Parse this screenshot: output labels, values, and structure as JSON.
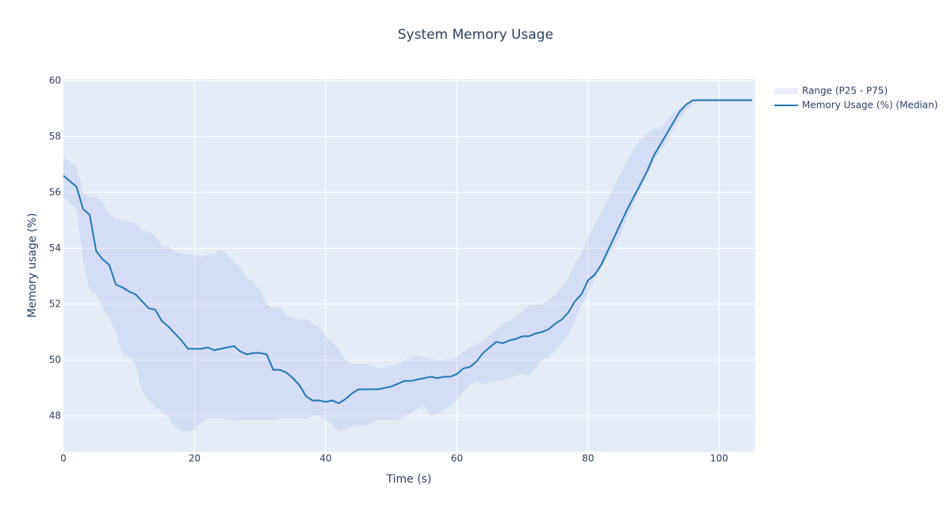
{
  "chart_data": {
    "type": "line",
    "title": "System Memory Usage",
    "x_label": "Time (s)",
    "y_label": "Memory usage (%)",
    "xlim": [
      0,
      105.5
    ],
    "ylim": [
      46.72,
      60.05
    ],
    "xticks": [
      0,
      20,
      40,
      60,
      80,
      100
    ],
    "yticks": [
      48,
      50,
      52,
      54,
      56,
      58,
      60
    ],
    "grid": true,
    "x": [
      0,
      1,
      2,
      3,
      4,
      5,
      6,
      7,
      8,
      9,
      10,
      11,
      12,
      13,
      14,
      15,
      16,
      17,
      18,
      19,
      20,
      21,
      22,
      23,
      24,
      25,
      26,
      27,
      28,
      29,
      30,
      31,
      32,
      33,
      34,
      35,
      36,
      37,
      38,
      39,
      40,
      41,
      42,
      43,
      44,
      45,
      46,
      47,
      48,
      49,
      50,
      51,
      52,
      53,
      54,
      55,
      56,
      57,
      58,
      59,
      60,
      61,
      62,
      63,
      64,
      65,
      66,
      67,
      68,
      69,
      70,
      71,
      72,
      73,
      74,
      75,
      76,
      77,
      78,
      79,
      80,
      81,
      82,
      83,
      84,
      85,
      86,
      87,
      88,
      89,
      90,
      91,
      92,
      93,
      94,
      95,
      96,
      97,
      98,
      99,
      100,
      101,
      102,
      103,
      104,
      105
    ],
    "series": [
      {
        "name": "Range (P25 - P75)",
        "color": "rgba(99,110,250,0.12)",
        "upper": [
          57.25,
          57.1,
          56.95,
          56.0,
          55.8,
          55.85,
          55.65,
          55.2,
          55.05,
          55.0,
          54.95,
          54.9,
          54.65,
          54.6,
          54.45,
          54.1,
          54.05,
          53.9,
          53.8,
          53.8,
          53.75,
          53.7,
          53.75,
          53.8,
          53.95,
          53.8,
          53.5,
          53.3,
          52.9,
          52.8,
          52.5,
          52.0,
          51.85,
          51.9,
          51.6,
          51.5,
          51.45,
          51.45,
          51.3,
          51.2,
          50.85,
          50.65,
          50.4,
          50.0,
          49.85,
          49.85,
          49.85,
          49.8,
          49.7,
          49.75,
          49.8,
          49.85,
          50.0,
          50.1,
          50.15,
          50.1,
          50.05,
          50.0,
          50.0,
          50.05,
          50.1,
          50.3,
          50.45,
          50.55,
          50.7,
          50.9,
          51.1,
          51.3,
          51.4,
          51.55,
          51.75,
          51.95,
          52.0,
          52.0,
          52.15,
          52.35,
          52.6,
          52.95,
          53.45,
          53.85,
          54.4,
          54.85,
          55.3,
          55.75,
          56.25,
          56.7,
          57.15,
          57.55,
          57.9,
          58.1,
          58.3,
          58.25,
          58.55,
          58.85,
          59.05,
          59.2,
          59.3,
          59.35,
          59.35,
          59.35,
          59.35,
          59.35,
          59.35,
          59.35,
          59.35,
          59.35
        ],
        "lower": [
          55.8,
          55.65,
          55.4,
          53.6,
          52.5,
          52.35,
          51.9,
          51.5,
          51.0,
          50.2,
          50.1,
          49.8,
          48.9,
          48.55,
          48.35,
          48.15,
          47.95,
          47.6,
          47.45,
          47.45,
          47.5,
          47.75,
          47.9,
          47.9,
          47.9,
          47.9,
          47.8,
          47.85,
          47.85,
          47.85,
          47.85,
          47.85,
          47.85,
          47.9,
          47.9,
          47.9,
          47.9,
          47.9,
          48.0,
          48.0,
          47.85,
          47.7,
          47.45,
          47.5,
          47.6,
          47.65,
          47.65,
          47.75,
          47.85,
          47.85,
          47.85,
          47.85,
          47.95,
          48.1,
          48.25,
          48.35,
          48.0,
          48.1,
          48.2,
          48.35,
          48.55,
          48.85,
          49.1,
          49.25,
          49.1,
          49.2,
          49.25,
          49.25,
          49.35,
          49.45,
          49.5,
          49.45,
          49.7,
          50.0,
          50.1,
          50.35,
          50.6,
          50.9,
          51.45,
          51.95,
          52.4,
          52.9,
          53.3,
          53.7,
          54.05,
          54.5,
          55.1,
          55.6,
          56.1,
          56.6,
          57.1,
          57.45,
          57.8,
          58.25,
          58.65,
          58.95,
          59.2,
          59.3,
          59.3,
          59.3,
          59.3,
          59.3,
          59.3,
          59.3,
          59.3,
          59.3
        ]
      },
      {
        "name": "Memory Usage (%) (Median)",
        "color": "#1f77b4",
        "values": [
          56.6,
          56.4,
          56.2,
          55.4,
          55.2,
          53.9,
          53.6,
          53.4,
          52.7,
          52.6,
          52.45,
          52.35,
          52.1,
          51.85,
          51.8,
          51.4,
          51.2,
          50.95,
          50.7,
          50.4,
          50.4,
          50.4,
          50.45,
          50.35,
          50.4,
          50.45,
          50.5,
          50.3,
          50.2,
          50.25,
          50.25,
          50.2,
          49.65,
          49.65,
          49.55,
          49.35,
          49.1,
          48.7,
          48.55,
          48.55,
          48.5,
          48.55,
          48.45,
          48.6,
          48.8,
          48.95,
          48.95,
          48.95,
          48.95,
          49.0,
          49.05,
          49.15,
          49.25,
          49.25,
          49.3,
          49.35,
          49.4,
          49.35,
          49.4,
          49.4,
          49.5,
          49.7,
          49.75,
          49.95,
          50.25,
          50.45,
          50.65,
          50.6,
          50.7,
          50.75,
          50.85,
          50.85,
          50.95,
          51.0,
          51.1,
          51.3,
          51.45,
          51.7,
          52.1,
          52.35,
          52.85,
          53.05,
          53.4,
          53.9,
          54.4,
          54.9,
          55.4,
          55.85,
          56.3,
          56.75,
          57.3,
          57.7,
          58.1,
          58.5,
          58.9,
          59.15,
          59.3,
          59.3,
          59.3,
          59.3,
          59.3,
          59.3,
          59.3,
          59.3,
          59.3,
          59.3
        ]
      }
    ]
  }
}
